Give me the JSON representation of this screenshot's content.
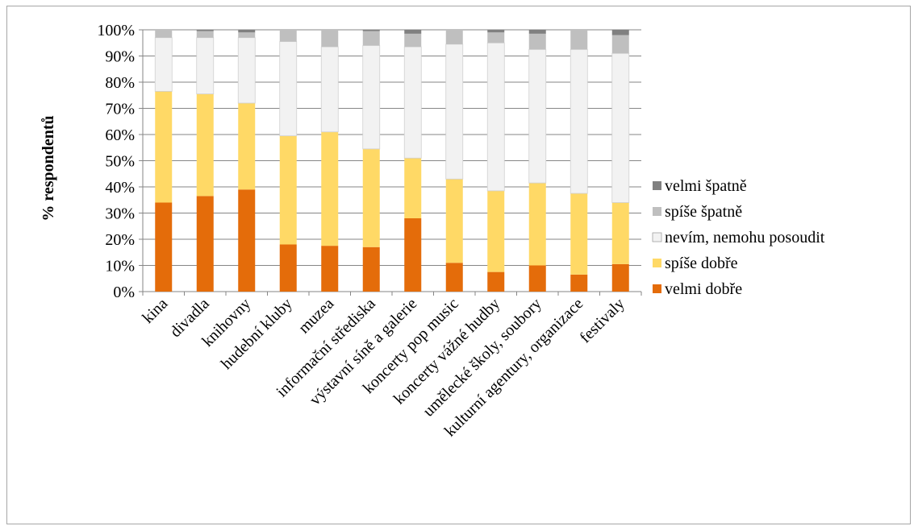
{
  "chart_data": {
    "type": "bar",
    "stacked": true,
    "categories": [
      "kina",
      "divadla",
      "knihovny",
      "hudební kluby",
      "muzea",
      "informační střediska",
      "výstavní síně a galerie",
      "koncerty pop music",
      "koncerty vážné hudby",
      "umělecké školy, soubory",
      "kulturní agentury, organizace",
      "festivaly"
    ],
    "series": [
      {
        "name": "velmi dobře",
        "color": "#E46C0A",
        "values": [
          34,
          36.5,
          39,
          18,
          17.5,
          17,
          28,
          11,
          7.5,
          10,
          6.5,
          10.5
        ]
      },
      {
        "name": "spíše dobře",
        "color": "#FFD966",
        "values": [
          42.5,
          39,
          33,
          41.5,
          43.5,
          37.5,
          23,
          32,
          31,
          31.5,
          31,
          23.5
        ]
      },
      {
        "name": "nevím, nemohu posoudit",
        "color": "#F2F2F2",
        "values": [
          20.5,
          21.5,
          25,
          36,
          32.5,
          39.5,
          42.5,
          51.5,
          56.5,
          51,
          55,
          57
        ]
      },
      {
        "name": "spíše špatně",
        "color": "#BFBFBF",
        "values": [
          3,
          2.5,
          2,
          4.5,
          6.5,
          5.5,
          5,
          5.5,
          4,
          6,
          7.5,
          7
        ]
      },
      {
        "name": "velmi špatně",
        "color": "#808080",
        "values": [
          0,
          0.5,
          1,
          0,
          0,
          0.5,
          1.5,
          0,
          1,
          1.5,
          0,
          2
        ]
      }
    ],
    "ylabel": "% respondentů",
    "ylim": [
      0,
      100
    ],
    "yticks": [
      "0%",
      "10%",
      "20%",
      "30%",
      "40%",
      "50%",
      "60%",
      "70%",
      "80%",
      "90%",
      "100%"
    ],
    "grid": true,
    "legend_position": "right",
    "legend_order": [
      "velmi špatně",
      "spíše špatně",
      "nevím, nemohu posoudit",
      "spíše dobře",
      "velmi dobře"
    ]
  }
}
